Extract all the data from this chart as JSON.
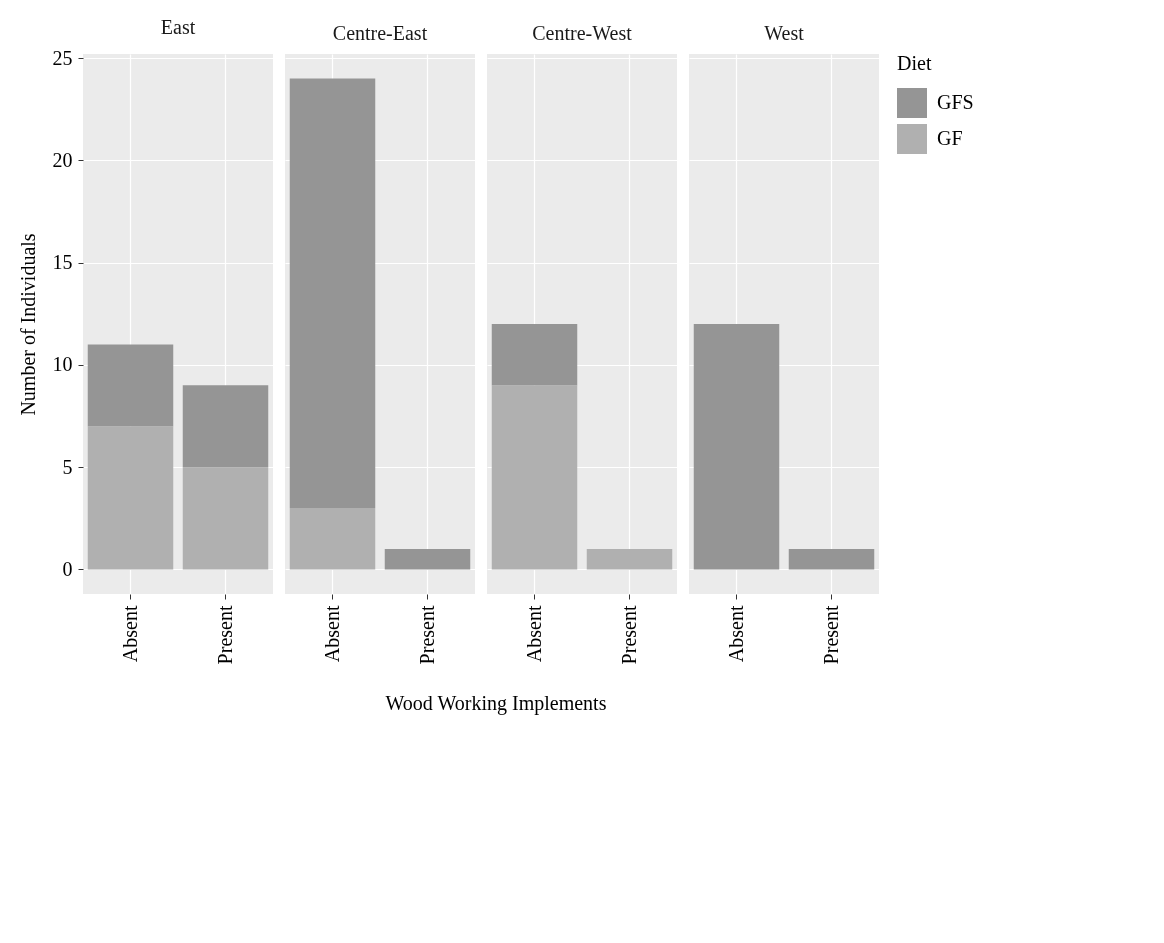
{
  "chart_data": [
    {
      "type": "bar",
      "title": "East",
      "categories": [
        "Absent",
        "Present"
      ],
      "stacked": true,
      "ylabel": "Number of Individuals",
      "xlabel": "Wood Working Implements",
      "ylim": [
        -1.2,
        25.2
      ],
      "yticks": [
        0,
        5,
        10,
        15,
        20,
        25
      ],
      "grid": true,
      "series": [
        {
          "color": "#b0b0b0",
          "values": [
            7,
            5
          ]
        },
        {
          "color": "#959595",
          "values": [
            4,
            4
          ]
        }
      ]
    },
    {
      "type": "bar",
      "title": "Centre-East",
      "categories": [
        "Absent",
        "Present"
      ],
      "stacked": true,
      "ylim": [
        -1.2,
        25.2
      ],
      "yticks": [
        0,
        5,
        10,
        15,
        20,
        25
      ],
      "grid": true,
      "tick_labels": "x",
      "series": [
        {
          "color": "#b0b0b0",
          "values": [
            3,
            0
          ]
        },
        {
          "color": "#959595",
          "values": [
            21,
            1
          ]
        }
      ]
    },
    {
      "type": "bar",
      "title": "Centre-West",
      "categories": [
        "Absent",
        "Present"
      ],
      "stacked": true,
      "ylim": [
        -1.2,
        25.2
      ],
      "yticks": [
        0,
        5,
        10,
        15,
        20,
        25
      ],
      "grid": true,
      "tick_labels": "x",
      "series": [
        {
          "color": "#b0b0b0",
          "values": [
            9,
            1
          ]
        },
        {
          "color": "#959595",
          "values": [
            3,
            0
          ]
        }
      ]
    },
    {
      "type": "bar",
      "title": "West",
      "categories": [
        "Absent",
        "Present"
      ],
      "stacked": true,
      "ylim": [
        -1.2,
        25.2
      ],
      "yticks": [
        0,
        5,
        10,
        15,
        20,
        25
      ],
      "grid": true,
      "tick_labels": "x",
      "legend": "right",
      "legend_title": "Diet",
      "series": [
        {
          "name": "GF",
          "color": "#b0b0b0",
          "values": [
            0,
            0
          ]
        },
        {
          "name": "GFS",
          "color": "#959595",
          "values": [
            12,
            1
          ]
        }
      ]
    }
  ]
}
